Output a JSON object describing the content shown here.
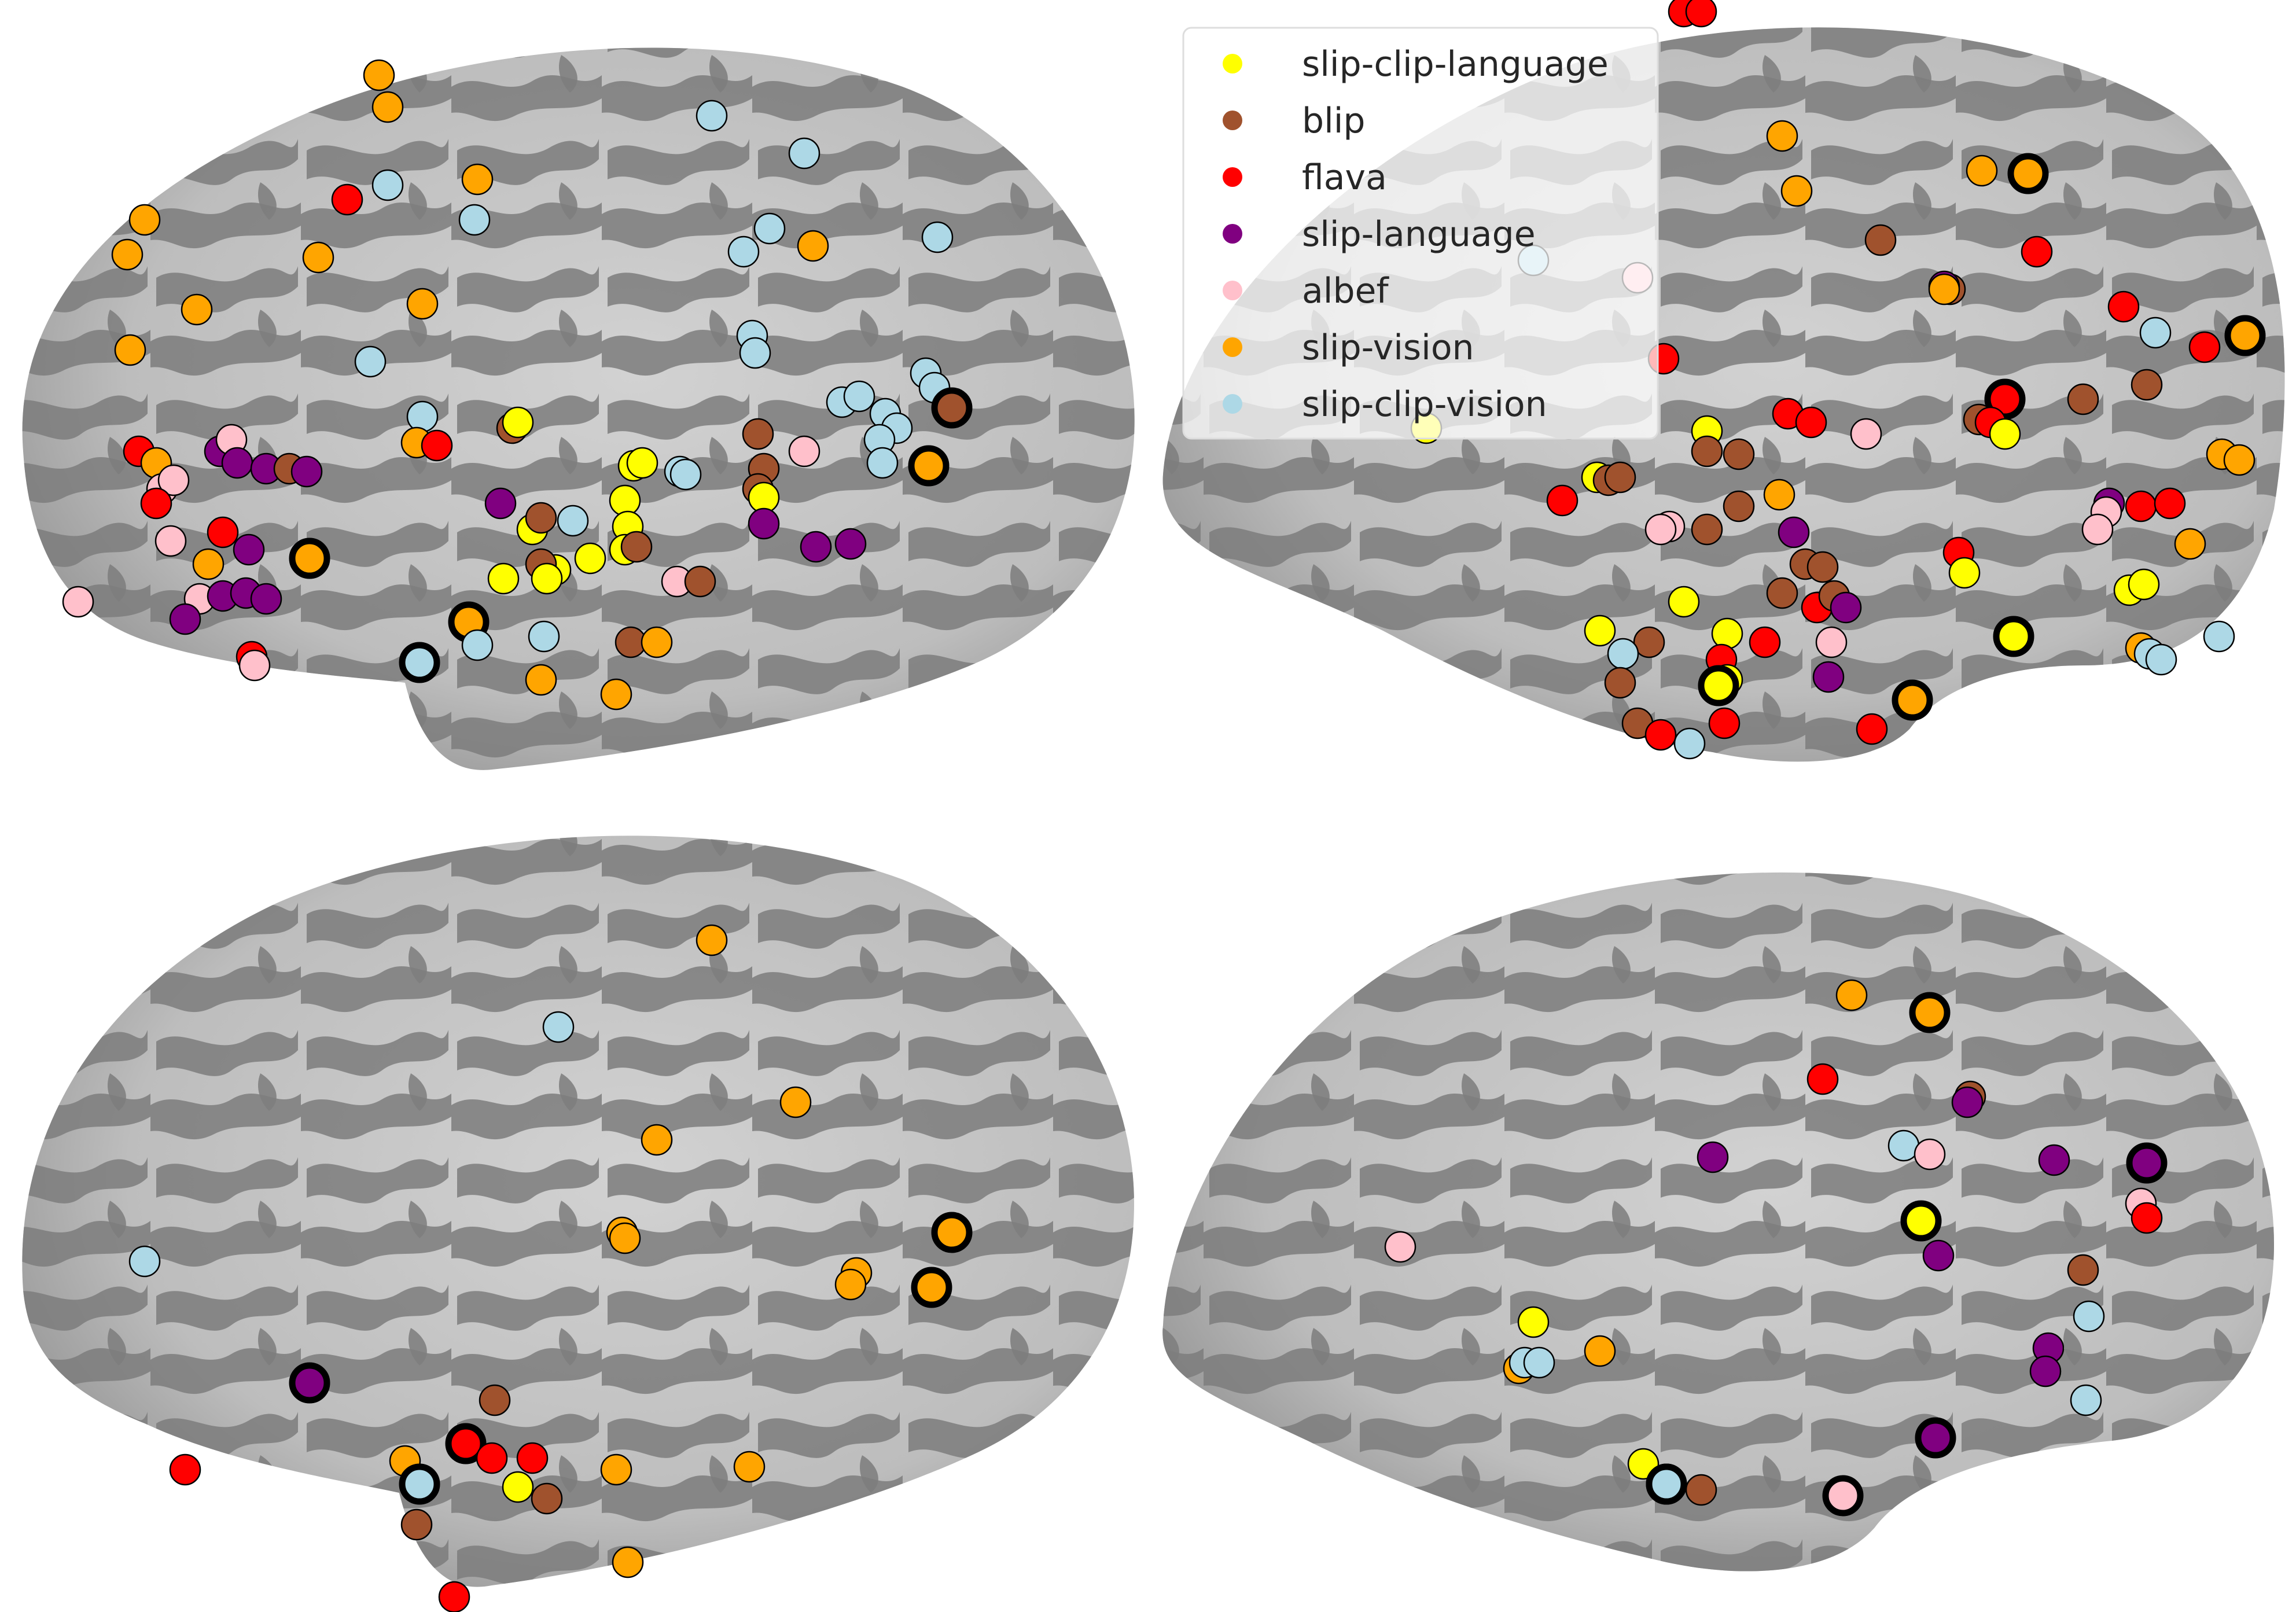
{
  "colors": {
    "surface_light": "#c8c8c8",
    "surface_dark": "#808080",
    "slip-clip-language": "#ffff00",
    "blip": "#a0522d",
    "flava": "#ff0000",
    "slip-language": "#800080",
    "albef": "#ffc0cb",
    "slip-vision": "#ffa500",
    "slip-clip-vision": "#add8e6"
  },
  "legend": {
    "items": [
      {
        "label": "slip-clip-language",
        "color": "#ffff00"
      },
      {
        "label": "blip",
        "color": "#a0522d"
      },
      {
        "label": "flava",
        "color": "#ff0000"
      },
      {
        "label": "slip-language",
        "color": "#800080"
      },
      {
        "label": "albef",
        "color": "#ffc0cb"
      },
      {
        "label": "slip-vision",
        "color": "#ffa500"
      },
      {
        "label": "slip-clip-vision",
        "color": "#add8e6"
      }
    ]
  },
  "panels": [
    {
      "view": "left-lateral"
    },
    {
      "view": "right-lateral"
    },
    {
      "view": "left-lateral"
    },
    {
      "view": "right-lateral"
    }
  ]
}
